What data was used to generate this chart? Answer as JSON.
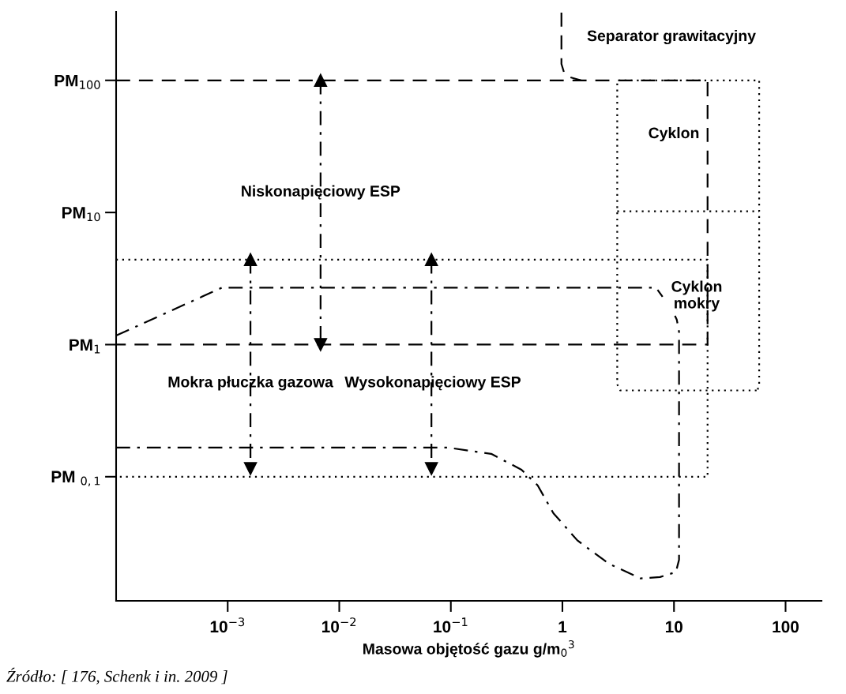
{
  "chart_data": {
    "type": "line",
    "log": "xy",
    "xlabel": "Masowa objętość gazu g/m$_{0}$$^{3}$",
    "xlim": [
      0.0001,
      210
    ],
    "ylim": [
      0.0115,
      330
    ],
    "xticks": [
      {
        "value": 0.001,
        "label": "10$^{−3}$"
      },
      {
        "value": 0.01,
        "label": "10$^{−2}$"
      },
      {
        "value": 0.1,
        "label": "10$^{−1}$"
      },
      1,
      10,
      100
    ],
    "yticks": [
      {
        "value": 0.1,
        "label": "PM $_{0,1}$"
      },
      {
        "value": 1,
        "label": "PM$_{1}$"
      },
      {
        "value": 10,
        "label": "PM$_{10}$"
      },
      {
        "value": 100,
        "label": "PM$_{100}$"
      }
    ],
    "series": [
      {
        "color": "#000000",
        "line_style": "dashed",
        "x": [
          0.0001,
          20,
          20,
          0.0001
        ],
        "values": [
          100,
          100,
          1,
          1
        ]
      },
      {
        "color": "#000000",
        "line_style": "dashed",
        "x": [
          0.98,
          0.98,
          1.03,
          1.15,
          1.47
        ],
        "values": [
          326,
          133,
          116,
          106,
          100
        ]
      },
      {
        "color": "#000000",
        "line_style": "dotted",
        "x": [
          55,
          3.3,
          3.1,
          3.1,
          58,
          58,
          56
        ],
        "values": [
          0.45,
          0.45,
          0.5,
          100,
          100,
          0.5,
          0.45
        ]
      },
      {
        "color": "#000000",
        "line_style": "dotted",
        "x": [
          3.1,
          58
        ],
        "values": [
          10.2,
          10.2
        ]
      },
      {
        "color": "#000000",
        "line_style": "dotted",
        "x": [
          0.0001,
          20,
          20,
          0.0001
        ],
        "values": [
          4.4,
          4.4,
          0.1,
          0.1
        ]
      },
      {
        "color": "#000000",
        "line_style": "dashdot",
        "x": [
          0.0001,
          0.00089,
          6.9,
          7.9
        ],
        "values": [
          1.17,
          2.7,
          2.7,
          2.3
        ]
      },
      {
        "color": "#000000",
        "line_style": "dashdot",
        "x": [
          0.0001,
          0.095,
          0.23,
          0.43,
          0.6,
          0.83,
          1.36,
          2.6,
          5.0,
          7.5,
          10.4,
          11.1,
          11.1,
          10.6,
          10.2
        ],
        "values": [
          0.166,
          0.166,
          0.149,
          0.113,
          0.086,
          0.053,
          0.033,
          0.022,
          0.017,
          0.0174,
          0.019,
          0.0235,
          1.25,
          1.54,
          1.65
        ]
      },
      {
        "color": "#000000",
        "line_style": "dashdot",
        "marker": "triangle",
        "x": [
          0.0068,
          0.0068
        ],
        "values": [
          100,
          1
        ]
      },
      {
        "color": "#000000",
        "line_style": "dashdot",
        "marker": "triangle",
        "x": [
          0.0016,
          0.0016
        ],
        "values": [
          4.4,
          0.115
        ]
      },
      {
        "color": "#000000",
        "line_style": "dashdot",
        "marker": "triangle",
        "x": [
          0.067,
          0.067
        ],
        "values": [
          4.4,
          0.115
        ]
      }
    ],
    "annotations": [
      "Separator grawitacyjny",
      "Cyklon",
      {
        "text": "Niskonapięciowy ESP",
        "x": 0.0068,
        "y": 14.2
      },
      "Cyklon\nmokry",
      {
        "text": "Mokra płuczka gazowa",
        "x": 0.0016,
        "y": 0.51
      },
      {
        "text": "Wysokonapięciowy ESP",
        "x": 0.069,
        "y": 0.51
      },
      "Źródło: [ 176, Schenk i in. 2009 ]"
    ]
  }
}
